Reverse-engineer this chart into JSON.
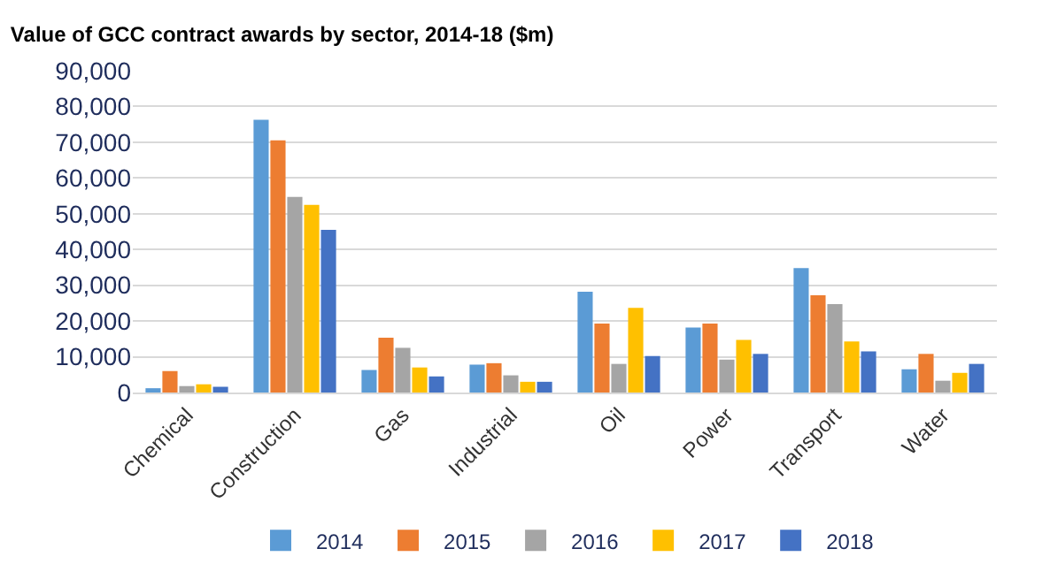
{
  "chart_data": {
    "type": "bar",
    "title": "Value of GCC contract awards by sector, 2014-18 ($m)",
    "categories": [
      "Chemical",
      "Construction",
      "Gas",
      "Industrial",
      "Oil",
      "Power",
      "Transport",
      "Water"
    ],
    "series": [
      {
        "name": "2014",
        "color": "#5b9bd5",
        "values": [
          1200,
          76300,
          6300,
          7800,
          28200,
          18200,
          34800,
          6500
        ]
      },
      {
        "name": "2015",
        "color": "#ed7d31",
        "values": [
          6000,
          70500,
          15300,
          8200,
          19300,
          19300,
          27200,
          10800
        ]
      },
      {
        "name": "2016",
        "color": "#a5a5a5",
        "values": [
          1800,
          54700,
          12500,
          4800,
          8000,
          9200,
          24700,
          3300
        ]
      },
      {
        "name": "2017",
        "color": "#ffc000",
        "values": [
          2300,
          52500,
          7000,
          3000,
          23700,
          14700,
          14300,
          5500
        ]
      },
      {
        "name": "2018",
        "color": "#4472c4",
        "values": [
          1600,
          45500,
          4500,
          3000,
          10200,
          10800,
          11500,
          8000
        ]
      }
    ],
    "ylim": [
      0,
      90000
    ],
    "yticks": [
      {
        "value": 0,
        "label": "0"
      },
      {
        "value": 10000,
        "label": "10,000"
      },
      {
        "value": 20000,
        "label": "20,000"
      },
      {
        "value": 30000,
        "label": "30,000"
      },
      {
        "value": 40000,
        "label": "40,000"
      },
      {
        "value": 50000,
        "label": "50,000"
      },
      {
        "value": 60000,
        "label": "60,000"
      },
      {
        "value": 70000,
        "label": "70,000"
      },
      {
        "value": 80000,
        "label": "80,000"
      },
      {
        "value": 90000,
        "label": "90,000"
      }
    ],
    "grid": "y",
    "legend": "bottom"
  }
}
